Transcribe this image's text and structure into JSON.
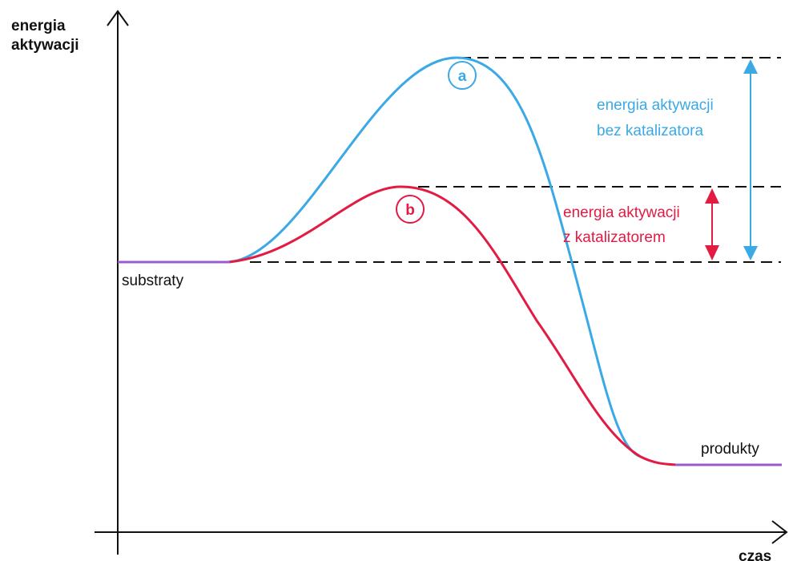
{
  "axes": {
    "y_title_line1": "energia",
    "y_title_line2": "aktywacji",
    "x_title": "czas"
  },
  "labels": {
    "reactants": "substraty",
    "products": "produkty",
    "uncatalyzed_line1": "energia aktywacji",
    "uncatalyzed_line2": "bez katalizatora",
    "catalyzed_line1": "energia aktywacji",
    "catalyzed_line2": "z katalizatorem",
    "curve_a_badge": "a",
    "curve_b_badge": "b"
  },
  "colors": {
    "uncatalyzed": "#3aa9e6",
    "catalyzed": "#e31b43",
    "baseline": "#9b59d0",
    "axis": "#111111",
    "dashed": "#111111"
  }
}
